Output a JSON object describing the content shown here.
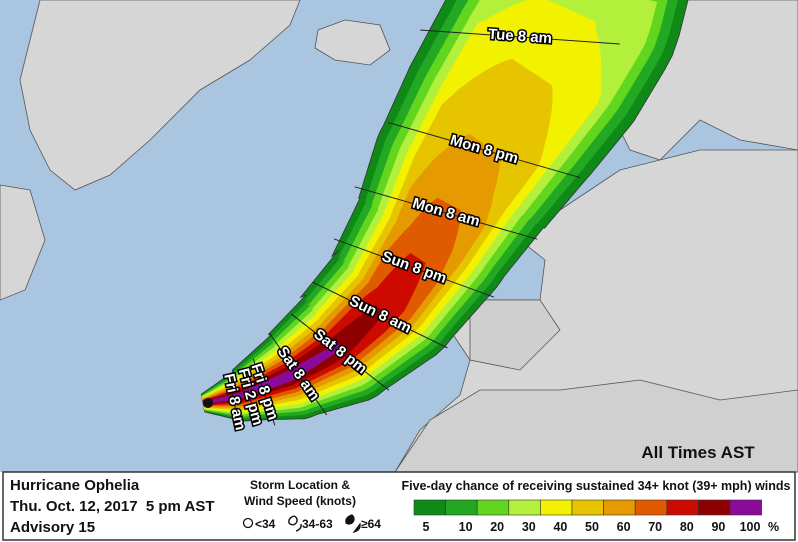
{
  "map": {
    "time_labels": [
      "Tue 8 am",
      "Mon 8 pm",
      "Mon 8 am",
      "Sun 8 pm",
      "Sun 8 am",
      "Sat 8 pm",
      "Sat 8 am",
      "Fri 8 pm",
      "Fri 2 pm",
      "Fri 8 am"
    ],
    "time_note": "All Times AST"
  },
  "footer": {
    "title": "Hurricane Ophelia",
    "date": "Thu. Oct. 12, 2017  5 pm AST",
    "advisory": "Advisory 15",
    "symbol_title": [
      "Storm Location &",
      "Wind Speed (knots)"
    ],
    "symbols": [
      "<34",
      "34-63",
      "≥64"
    ],
    "legend_title": "Five-day chance of receiving sustained 34+ knot (39+ mph) winds",
    "legend": [
      {
        "value": 5,
        "color": "#0f8a17"
      },
      {
        "value": 10,
        "color": "#22a822"
      },
      {
        "value": 20,
        "color": "#62d61e"
      },
      {
        "value": 30,
        "color": "#b2f03c"
      },
      {
        "value": 40,
        "color": "#f2f200"
      },
      {
        "value": 50,
        "color": "#e6c400"
      },
      {
        "value": 60,
        "color": "#e59a00"
      },
      {
        "value": 70,
        "color": "#e05a00"
      },
      {
        "value": 80,
        "color": "#cc0a00"
      },
      {
        "value": 90,
        "color": "#8e0000"
      },
      {
        "value": 100,
        "color": "#8a0a9a"
      }
    ],
    "legend_unit": "%"
  }
}
